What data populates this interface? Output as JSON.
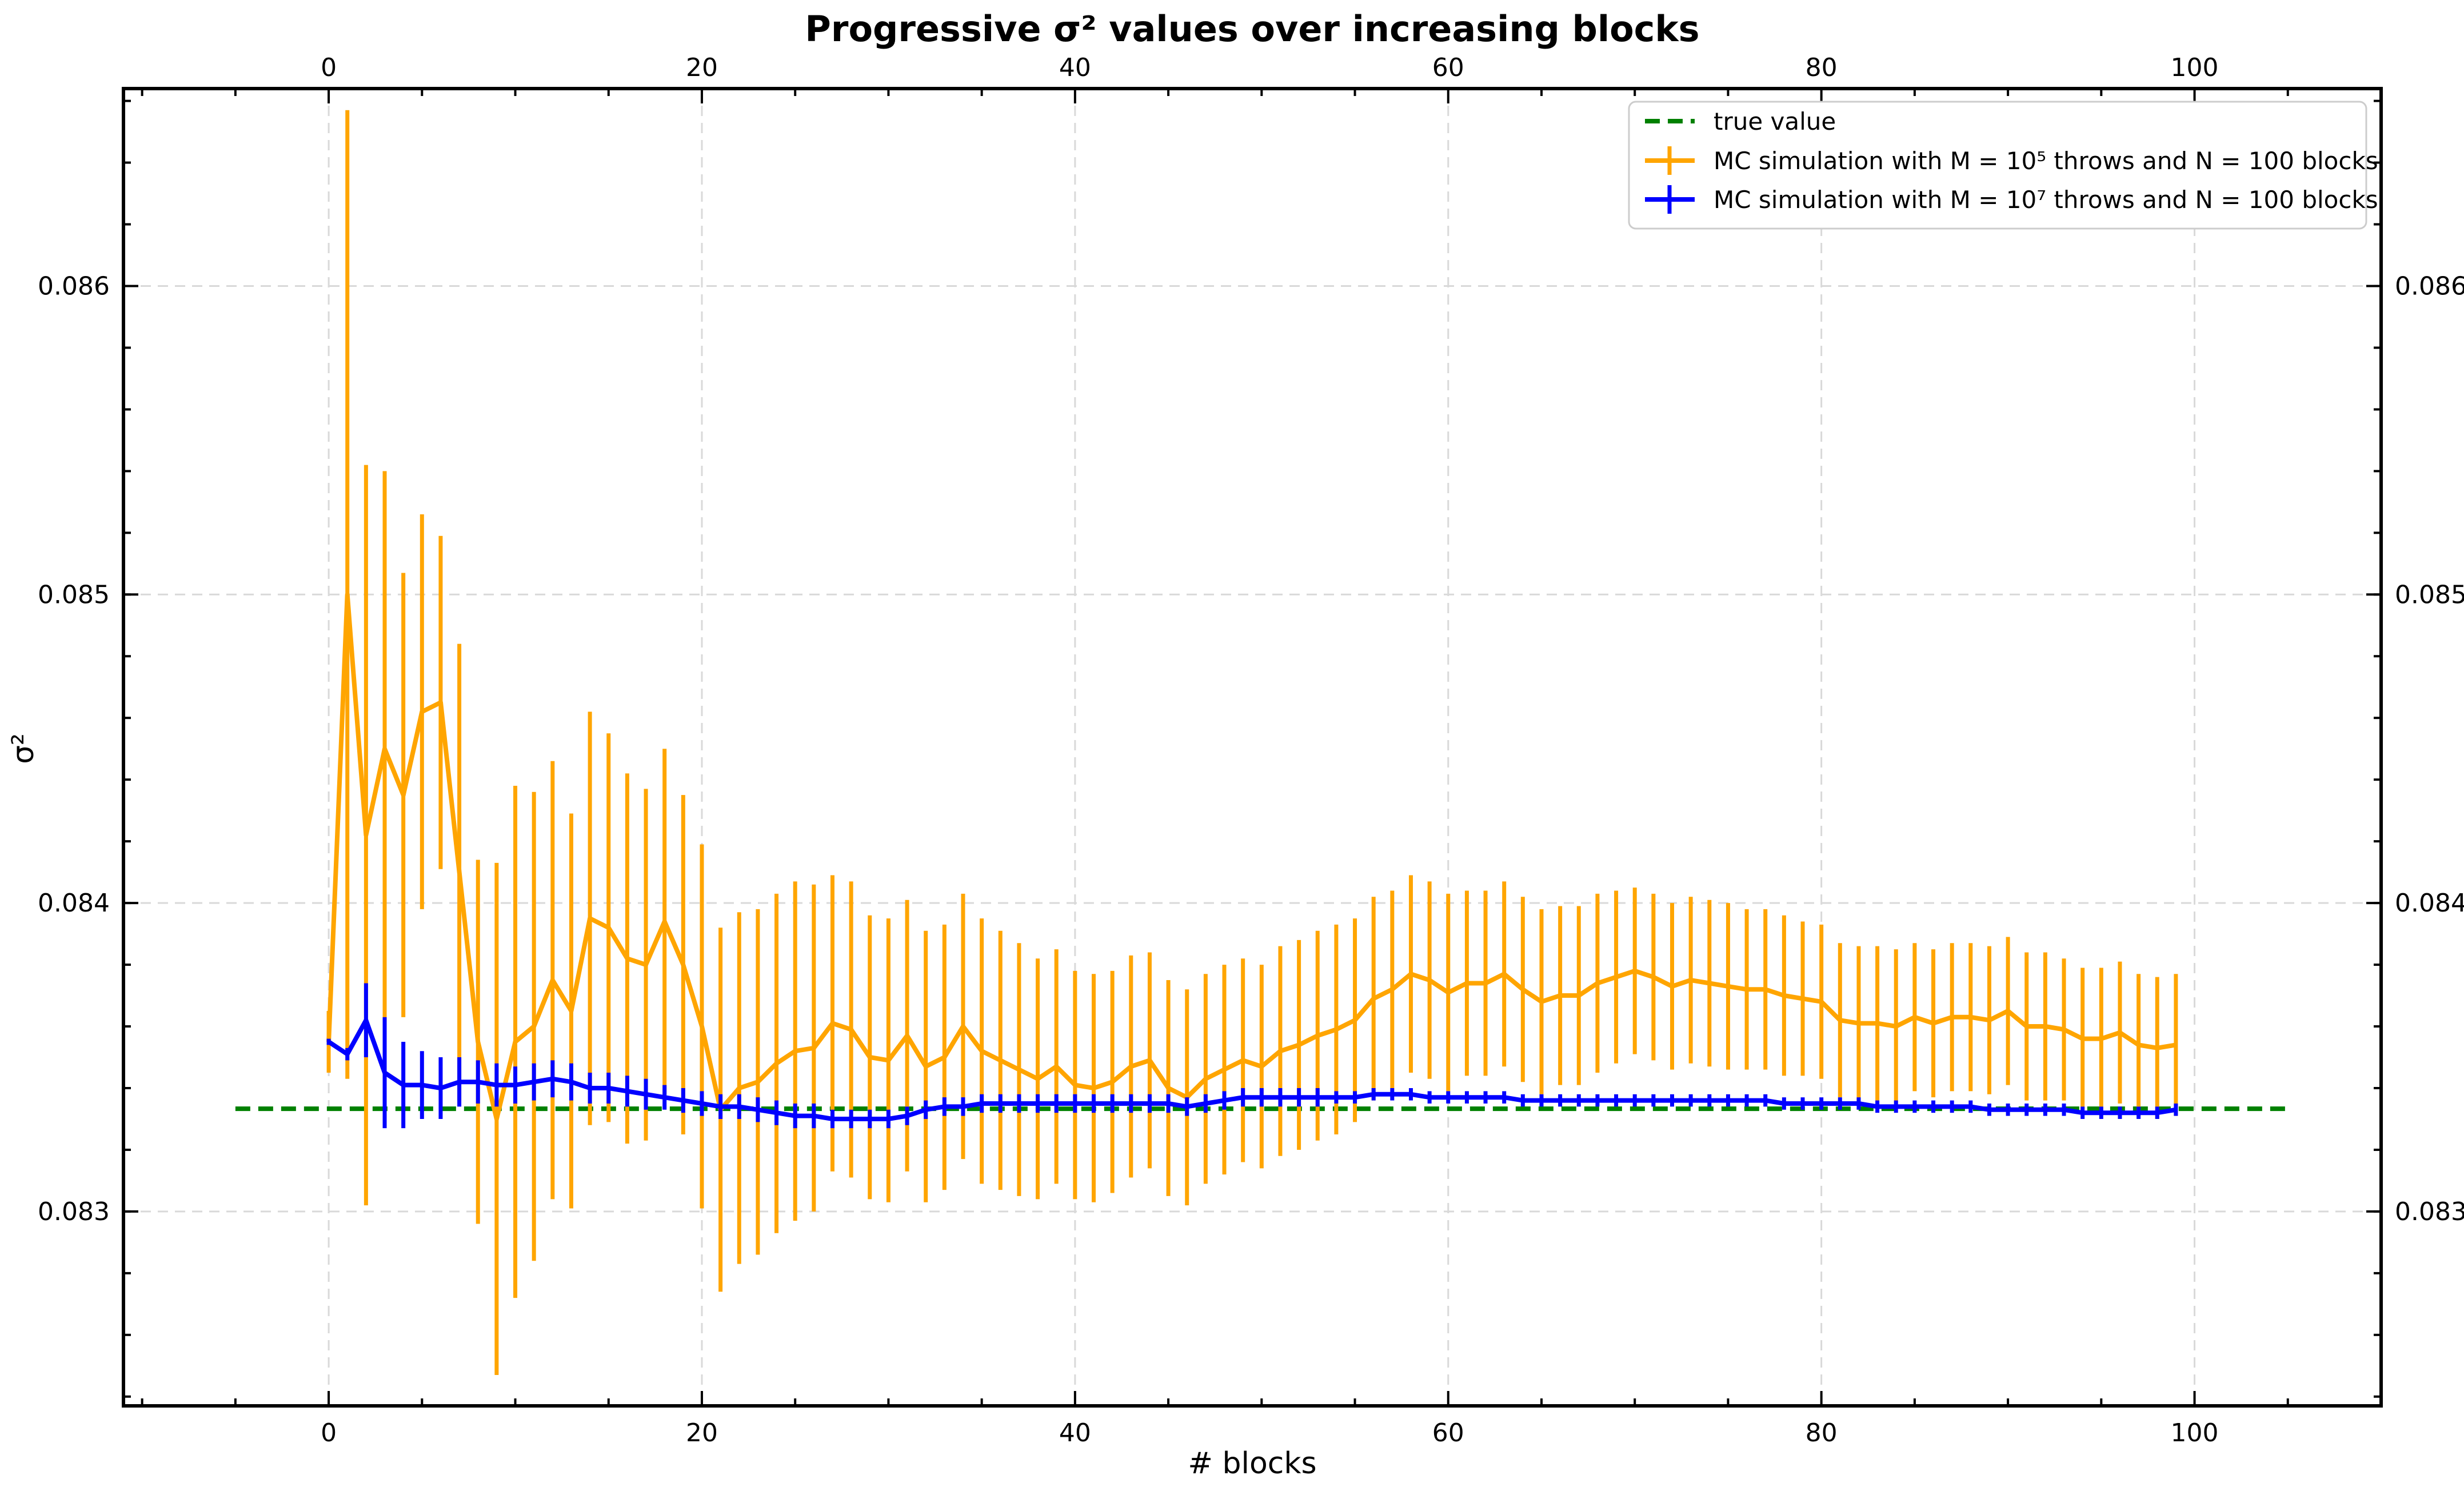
{
  "chart_data": {
    "type": "line",
    "title": "Progressive σ² values over increasing blocks",
    "xlabel": "# blocks",
    "ylabel": "σ²",
    "xlim": [
      -11,
      110
    ],
    "ylim": [
      0.08237,
      0.08664
    ],
    "x_ticks": [
      "0",
      "20",
      "40",
      "60",
      "80",
      "100"
    ],
    "y_ticks": [
      "0.083",
      "0.084",
      "0.085",
      "0.086"
    ],
    "grid": true,
    "legend_position": "top-right",
    "reference_line": {
      "name": "true value",
      "y": 0.083333,
      "x_range": [
        -5,
        105
      ],
      "color": "#008000"
    },
    "series": [
      {
        "name": "MC simulation with M = 10⁵ throws and N = 100 blocks",
        "color": "#ffa500",
        "x": [
          0,
          1,
          2,
          3,
          4,
          5,
          6,
          7,
          8,
          9,
          10,
          11,
          12,
          13,
          14,
          15,
          16,
          17,
          18,
          19,
          20,
          21,
          22,
          23,
          24,
          25,
          26,
          27,
          28,
          29,
          30,
          31,
          32,
          33,
          34,
          35,
          36,
          37,
          38,
          39,
          40,
          41,
          42,
          43,
          44,
          45,
          46,
          47,
          48,
          49,
          50,
          51,
          52,
          53,
          54,
          55,
          56,
          57,
          58,
          59,
          60,
          61,
          62,
          63,
          64,
          65,
          66,
          67,
          68,
          69,
          70,
          71,
          72,
          73,
          74,
          75,
          76,
          77,
          78,
          79,
          80,
          81,
          82,
          83,
          84,
          85,
          86,
          87,
          88,
          89,
          90,
          91,
          92,
          93,
          94,
          95,
          96,
          97,
          98,
          99
        ],
        "values": [
          0.08355,
          0.085,
          0.08422,
          0.0845,
          0.08435,
          0.08462,
          0.08465,
          0.0841,
          0.08355,
          0.0833,
          0.08355,
          0.0836,
          0.08375,
          0.08365,
          0.08395,
          0.08392,
          0.08382,
          0.0838,
          0.08394,
          0.0838,
          0.0836,
          0.08333,
          0.0834,
          0.08342,
          0.08348,
          0.08352,
          0.08353,
          0.08361,
          0.08359,
          0.0835,
          0.08349,
          0.08357,
          0.08347,
          0.0835,
          0.0836,
          0.08352,
          0.08349,
          0.08346,
          0.08343,
          0.08347,
          0.08341,
          0.0834,
          0.08342,
          0.08347,
          0.08349,
          0.0834,
          0.08337,
          0.08343,
          0.08346,
          0.08349,
          0.08347,
          0.08352,
          0.08354,
          0.08357,
          0.08359,
          0.08362,
          0.08369,
          0.08372,
          0.08377,
          0.08375,
          0.08371,
          0.08374,
          0.08374,
          0.08377,
          0.08372,
          0.08368,
          0.0837,
          0.0837,
          0.08374,
          0.08376,
          0.08378,
          0.08376,
          0.08373,
          0.08375,
          0.08374,
          0.08373,
          0.08372,
          0.08372,
          0.0837,
          0.08369,
          0.08368,
          0.08362,
          0.08361,
          0.08361,
          0.0836,
          0.08363,
          0.08361,
          0.08363,
          0.08363,
          0.08362,
          0.08365,
          0.0836,
          0.0836,
          0.08359,
          0.08356,
          0.08356,
          0.08358,
          0.08354,
          0.08353,
          0.08354
        ],
        "errors": [
          0.0001,
          0.00157,
          0.0012,
          0.0009,
          0.00072,
          0.00064,
          0.00054,
          0.00074,
          0.00059,
          0.00083,
          0.00083,
          0.00076,
          0.00071,
          0.00064,
          0.00067,
          0.00063,
          0.0006,
          0.00057,
          0.00056,
          0.00055,
          0.00059,
          0.00059,
          0.00057,
          0.00056,
          0.00055,
          0.00055,
          0.00053,
          0.00048,
          0.00048,
          0.00046,
          0.00046,
          0.00044,
          0.00044,
          0.00043,
          0.00043,
          0.00043,
          0.00042,
          0.00041,
          0.00039,
          0.00038,
          0.00037,
          0.00037,
          0.00036,
          0.00036,
          0.00035,
          0.00035,
          0.00035,
          0.00034,
          0.00034,
          0.00033,
          0.00033,
          0.00034,
          0.00034,
          0.00034,
          0.00034,
          0.00033,
          0.00033,
          0.00032,
          0.00032,
          0.00032,
          0.00032,
          0.0003,
          0.0003,
          0.0003,
          0.0003,
          0.0003,
          0.00029,
          0.00029,
          0.00029,
          0.00028,
          0.00027,
          0.00027,
          0.00027,
          0.00027,
          0.00027,
          0.00027,
          0.00026,
          0.00026,
          0.00026,
          0.00025,
          0.00025,
          0.00025,
          0.00025,
          0.00025,
          0.00025,
          0.00024,
          0.00024,
          0.00024,
          0.00024,
          0.00024,
          0.00024,
          0.00024,
          0.00024,
          0.00023,
          0.00023,
          0.00023,
          0.00023,
          0.00023,
          0.00023,
          0.00023
        ]
      },
      {
        "name": "MC simulation with M = 10⁷ throws and N = 100 blocks",
        "color": "#0000ff",
        "x": [
          0,
          1,
          2,
          3,
          4,
          5,
          6,
          7,
          8,
          9,
          10,
          11,
          12,
          13,
          14,
          15,
          16,
          17,
          18,
          19,
          20,
          21,
          22,
          23,
          24,
          25,
          26,
          27,
          28,
          29,
          30,
          31,
          32,
          33,
          34,
          35,
          36,
          37,
          38,
          39,
          40,
          41,
          42,
          43,
          44,
          45,
          46,
          47,
          48,
          49,
          50,
          51,
          52,
          53,
          54,
          55,
          56,
          57,
          58,
          59,
          60,
          61,
          62,
          63,
          64,
          65,
          66,
          67,
          68,
          69,
          70,
          71,
          72,
          73,
          74,
          75,
          76,
          77,
          78,
          79,
          80,
          81,
          82,
          83,
          84,
          85,
          86,
          87,
          88,
          89,
          90,
          91,
          92,
          93,
          94,
          95,
          96,
          97,
          98,
          99
        ],
        "values": [
          0.08355,
          0.08351,
          0.08362,
          0.08345,
          0.08341,
          0.08341,
          0.0834,
          0.08342,
          0.08342,
          0.08341,
          0.08341,
          0.08342,
          0.08343,
          0.08342,
          0.0834,
          0.0834,
          0.08339,
          0.08338,
          0.08337,
          0.08336,
          0.08335,
          0.08334,
          0.08334,
          0.08333,
          0.08332,
          0.08331,
          0.08331,
          0.0833,
          0.0833,
          0.0833,
          0.0833,
          0.08331,
          0.08333,
          0.08334,
          0.08334,
          0.08335,
          0.08335,
          0.08335,
          0.08335,
          0.08335,
          0.08335,
          0.08335,
          0.08335,
          0.08335,
          0.08335,
          0.08335,
          0.08334,
          0.08335,
          0.08336,
          0.08337,
          0.08337,
          0.08337,
          0.08337,
          0.08337,
          0.08337,
          0.08337,
          0.08338,
          0.08338,
          0.08338,
          0.08337,
          0.08337,
          0.08337,
          0.08337,
          0.08337,
          0.08336,
          0.08336,
          0.08336,
          0.08336,
          0.08336,
          0.08336,
          0.08336,
          0.08336,
          0.08336,
          0.08336,
          0.08336,
          0.08336,
          0.08336,
          0.08336,
          0.08335,
          0.08335,
          0.08335,
          0.08335,
          0.08335,
          0.08334,
          0.08334,
          0.08334,
          0.08334,
          0.08334,
          0.08334,
          0.08333,
          0.08333,
          0.08333,
          0.08333,
          0.08333,
          0.08332,
          0.08332,
          0.08332,
          0.08332,
          0.08332,
          0.08333
        ],
        "errors": [
          1e-05,
          2e-05,
          0.00012,
          0.00018,
          0.00014,
          0.00011,
          0.0001,
          8e-05,
          7e-05,
          7e-05,
          6e-05,
          6e-05,
          6e-05,
          6e-05,
          5e-05,
          5e-05,
          5e-05,
          5e-05,
          4e-05,
          4e-05,
          4e-05,
          4e-05,
          4e-05,
          4e-05,
          4e-05,
          4e-05,
          4e-05,
          3e-05,
          3e-05,
          3e-05,
          3e-05,
          3e-05,
          3e-05,
          3e-05,
          3e-05,
          3e-05,
          3e-05,
          3e-05,
          3e-05,
          3e-05,
          3e-05,
          3e-05,
          3e-05,
          3e-05,
          3e-05,
          3e-05,
          3e-05,
          3e-05,
          3e-05,
          3e-05,
          3e-05,
          3e-05,
          3e-05,
          3e-05,
          2e-05,
          2e-05,
          2e-05,
          2e-05,
          2e-05,
          2e-05,
          2e-05,
          2e-05,
          2e-05,
          2e-05,
          2e-05,
          2e-05,
          2e-05,
          2e-05,
          2e-05,
          2e-05,
          2e-05,
          2e-05,
          2e-05,
          2e-05,
          2e-05,
          2e-05,
          2e-05,
          2e-05,
          2e-05,
          2e-05,
          2e-05,
          2e-05,
          2e-05,
          2e-05,
          2e-05,
          2e-05,
          2e-05,
          2e-05,
          2e-05,
          2e-05,
          2e-05,
          2e-05,
          2e-05,
          2e-05,
          2e-05,
          2e-05,
          2e-05,
          2e-05,
          2e-05,
          2e-05
        ]
      }
    ]
  }
}
